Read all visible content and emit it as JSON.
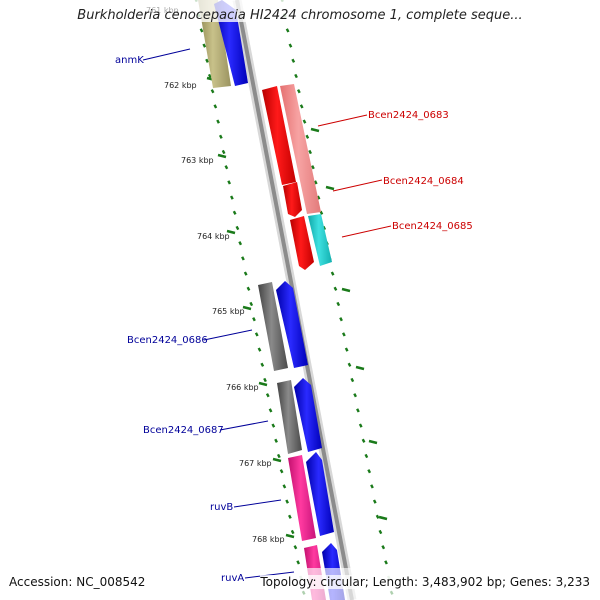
{
  "title": "Burkholderia cenocepacia HI2424 chromosome 1, complete seque...",
  "accession": "Accession: NC_008542",
  "topology": "Topology: circular; Length: 3,483,902 bp; Genes: 3,233",
  "ticks": [
    {
      "label": "761 kbp",
      "faded": true
    },
    {
      "label": "762 kbp"
    },
    {
      "label": "763 kbp"
    },
    {
      "label": "764 kbp"
    },
    {
      "label": "765 kbp"
    },
    {
      "label": "766 kbp"
    },
    {
      "label": "767 kbp"
    },
    {
      "label": "768 kbp"
    }
  ],
  "genes": [
    {
      "label": "anmK",
      "color": "#000099"
    },
    {
      "label": "Bcen2424_0683",
      "color": "#cc0000"
    },
    {
      "label": "Bcen2424_0684",
      "color": "#cc0000"
    },
    {
      "label": "Bcen2424_0685",
      "color": "#cc0000"
    },
    {
      "label": "Bcen2424_0686",
      "color": "#000099"
    },
    {
      "label": "Bcen2424_0687",
      "color": "#000099"
    },
    {
      "label": "ruvB",
      "color": "#000099"
    },
    {
      "label": "ruvA",
      "color": "#000099"
    }
  ],
  "colors": {
    "backbone": "#8c8c8c",
    "tick_marks": "#1a7a1a",
    "feature_blue": "#0000ee",
    "feature_red": "#ee0000",
    "feature_pink_light": "#f08a8a",
    "feature_cyan": "#19c7c7",
    "feature_olive": "#b4ad73",
    "feature_grey": "#6a6a6a",
    "feature_magenta": "#ee1c8c"
  }
}
